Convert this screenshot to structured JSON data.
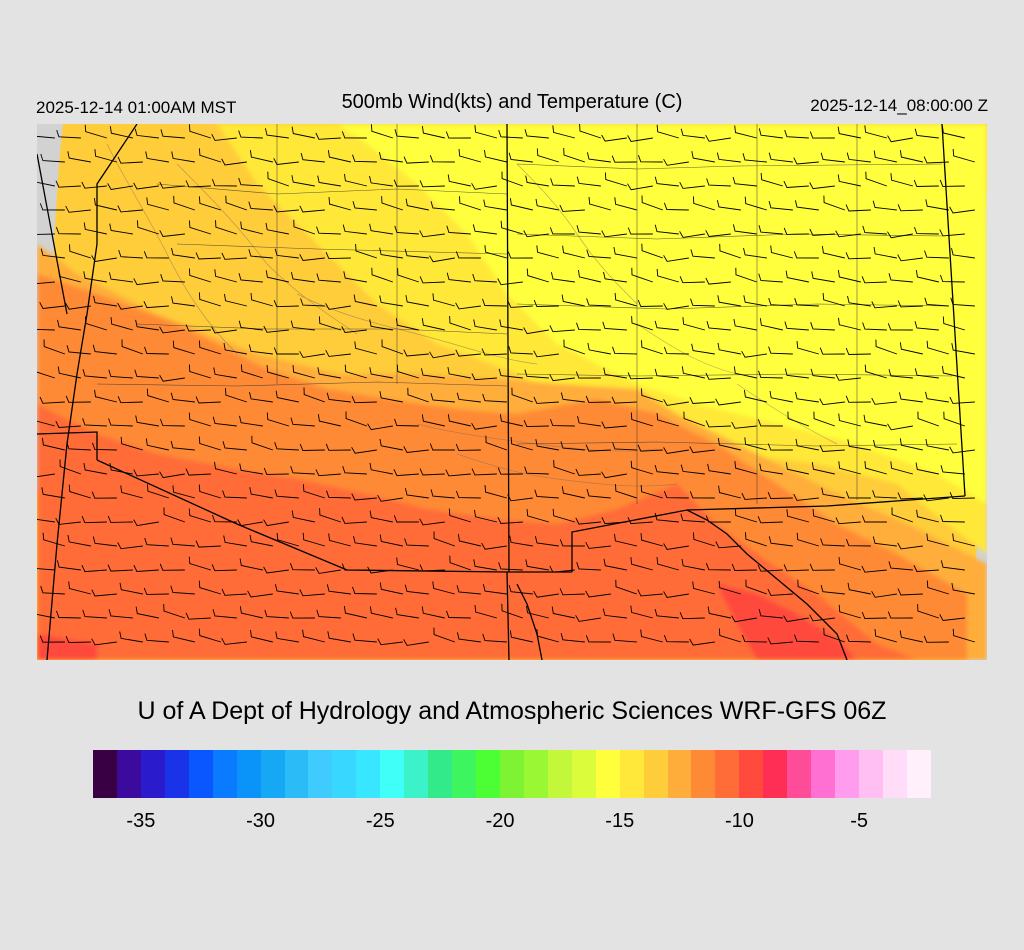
{
  "header": {
    "local_time": "2025-12-14 01:00AM MST",
    "title": "500mb Wind(kts) and Temperature (C)",
    "utc_time": "2025-12-14_08:00:00 Z"
  },
  "credit": "U of A Dept of Hydrology and Atmospheric Sciences WRF-GFS 06Z",
  "legend": {
    "colors": [
      "#3a0044",
      "#3c0b9e",
      "#2a1ccc",
      "#1b33e8",
      "#0a57ff",
      "#0a7bff",
      "#0a93f9",
      "#16a8f5",
      "#2bbcf7",
      "#40cbff",
      "#37d7ff",
      "#39e6ff",
      "#40fff8",
      "#3cf2c9",
      "#33ea8a",
      "#3cf55f",
      "#4cff34",
      "#7ef334",
      "#99f733",
      "#c2f73a",
      "#dbfc3a",
      "#ffff3c",
      "#ffe839",
      "#ffcc3a",
      "#ffad3a",
      "#ff8a36",
      "#ff6c38",
      "#ff4a3c",
      "#ff2e55",
      "#ff4c99",
      "#ff70d2",
      "#ff9cee",
      "#ffbff2",
      "#ffdcf8",
      "#fff0fc"
    ],
    "ticks": [
      {
        "label": "-35",
        "value": -35
      },
      {
        "label": "-30",
        "value": -30
      },
      {
        "label": "-25",
        "value": -25
      },
      {
        "label": "-20",
        "value": -20
      },
      {
        "label": "-15",
        "value": -15
      },
      {
        "label": "-10",
        "value": -10
      },
      {
        "label": "-5",
        "value": -5
      }
    ]
  },
  "map": {
    "field": "500mb temperature (C) with wind barbs (kts)",
    "wind_direction": "generally from the northwest",
    "temperature_range_c": [
      -16,
      -9
    ],
    "colors": {
      "coldest": "#ffff3c",
      "cold": "#ffe839",
      "mid": "#ffcc3a",
      "warm": "#ffad3a",
      "warmer": "#ff8a36",
      "warmest": "#ff6c38",
      "hot": "#ff4a3c",
      "offgrid": "#d2d2d2"
    }
  }
}
